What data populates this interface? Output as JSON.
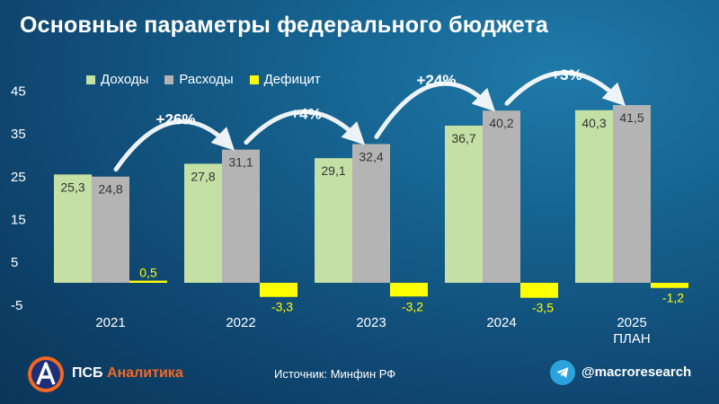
{
  "title": "Основные параметры федерального бюджета",
  "legend": {
    "income": "Доходы",
    "expense": "Расходы",
    "deficit": "Дефицит"
  },
  "footer": {
    "brand_main": "ПСБ",
    "brand_accent": "Аналитика",
    "source": "Источник: Минфин РФ",
    "handle": "@macroresearch"
  },
  "icons": {
    "logo": "psb-logo-icon",
    "telegram": "telegram-icon"
  },
  "colors": {
    "income": "#c5e0a4",
    "expense": "#b4b4b4",
    "deficit": "#ffff00",
    "brand_accent": "#f26722"
  },
  "chart_data": {
    "type": "bar",
    "categories": [
      "2021",
      "2022",
      "2023",
      "2024",
      "2025\nПЛАН"
    ],
    "series": [
      {
        "name": "Доходы",
        "values": [
          25.3,
          27.8,
          29.1,
          36.7,
          40.3
        ],
        "labels": [
          "25,3",
          "27,8",
          "29,1",
          "36,7",
          "40,3"
        ]
      },
      {
        "name": "Расходы",
        "values": [
          24.8,
          31.1,
          32.4,
          40.2,
          41.5
        ],
        "labels": [
          "24,8",
          "31,1",
          "32,4",
          "40,2",
          "41,5"
        ]
      },
      {
        "name": "Дефицит",
        "values": [
          0.5,
          -3.3,
          -3.2,
          -3.5,
          -1.2
        ],
        "labels": [
          "0,5",
          "-3,3",
          "-3,2",
          "-3,5",
          "-1,2"
        ]
      }
    ],
    "growth_annotations": [
      "+26%",
      "+4%",
      "+24%",
      "+3%"
    ],
    "yticks": [
      45,
      35,
      25,
      15,
      5,
      -5
    ],
    "ylim": [
      -5,
      45
    ],
    "legend_position": "top",
    "grid": false
  }
}
